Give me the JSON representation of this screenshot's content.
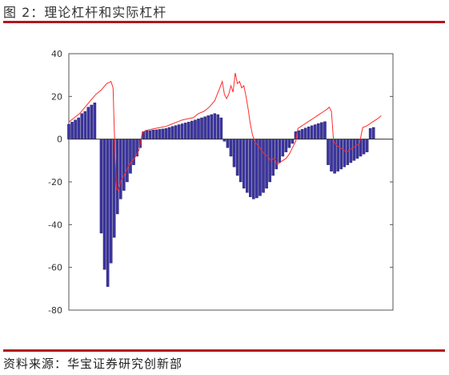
{
  "figure_title": "图 2：理论杠杆和实际杠杆",
  "source_note": "资料来源：华宝证券研究创新部",
  "colors": {
    "accent_rule": "#b1171e",
    "bar_fill": "#3c35a0",
    "bar_edge": "#1a1660",
    "line": "#ff2a2a"
  },
  "chart_data": {
    "type": "bar",
    "title": "",
    "xlabel": "",
    "ylabel": "",
    "ylim": [
      -80,
      40
    ],
    "yticks": [
      40,
      20,
      0,
      -20,
      -40,
      -60,
      -80
    ],
    "ytick_labels": [
      "40",
      "20",
      "0",
      "-20",
      "-40",
      "-60",
      "-80"
    ],
    "grid": false,
    "legend": "none",
    "x": [
      0,
      1,
      2,
      3,
      4,
      5,
      6,
      7,
      8,
      9,
      10,
      11,
      12,
      13,
      14,
      15,
      16,
      17,
      18,
      19,
      20,
      21,
      22,
      23,
      24,
      25,
      26,
      27,
      28,
      29,
      30,
      31,
      32,
      33,
      34,
      35,
      36,
      37,
      38,
      39,
      40,
      41,
      42,
      43,
      44,
      45,
      46,
      47,
      48,
      49,
      50,
      51,
      52,
      53,
      54,
      55,
      56,
      57,
      58,
      59,
      60,
      61,
      62,
      63,
      64,
      65,
      66,
      67,
      68,
      69,
      70,
      71,
      72,
      73,
      74,
      75,
      76,
      77,
      78,
      79,
      80,
      81,
      82,
      83,
      84,
      85,
      86,
      87,
      88,
      89,
      90,
      91,
      92,
      93,
      94,
      95,
      96,
      97,
      98,
      99,
      100,
      101,
      102,
      103,
      104,
      105,
      106,
      107,
      108,
      109,
      110,
      111,
      112,
      113,
      114,
      115,
      116,
      117,
      118,
      119,
      120,
      121,
      122,
      123,
      124,
      125,
      126,
      127,
      128,
      129,
      130,
      131,
      132,
      133,
      134,
      135,
      136,
      137,
      138,
      139,
      140,
      141,
      142,
      143,
      144,
      145,
      146,
      147,
      148,
      149,
      150,
      151,
      152,
      153,
      154,
      155,
      156,
      157,
      158,
      159,
      160,
      161,
      162,
      163,
      164,
      165,
      166,
      167,
      168,
      169,
      170,
      171,
      172,
      173,
      174,
      175,
      176,
      177,
      178,
      179,
      180,
      181,
      182,
      183,
      184,
      185,
      186,
      187,
      188,
      189,
      190,
      191,
      192,
      193,
      194,
      195,
      196,
      197,
      198,
      199,
      200,
      201,
      202,
      203,
      204,
      205,
      206,
      207,
      208,
      209,
      210,
      211,
      212,
      213,
      214,
      215,
      216,
      217,
      218,
      219,
      220,
      221,
      222,
      223,
      224,
      225,
      226,
      227,
      228,
      229,
      230,
      231,
      232,
      233,
      234,
      235,
      236,
      237,
      238,
      239,
      240,
      241,
      242,
      243,
      244,
      245,
      246,
      247,
      248,
      249,
      250,
      251,
      252,
      253,
      254,
      255,
      256,
      257,
      258,
      259,
      260,
      261,
      262,
      263,
      264,
      265,
      266,
      267,
      268,
      269,
      270,
      271,
      272,
      273,
      274,
      275,
      276,
      277,
      278,
      279,
      280,
      281,
      282,
      283,
      284,
      285,
      286,
      287,
      288,
      289,
      290,
      291,
      292,
      293,
      294,
      295,
      296,
      297,
      298,
      299,
      300,
      301,
      302,
      303,
      304,
      305,
      306,
      307,
      308,
      309,
      310,
      311,
      312,
      313,
      314,
      315,
      316,
      317,
      318,
      319,
      320,
      321,
      322,
      323,
      324,
      325,
      326,
      327,
      328,
      329,
      330,
      331,
      332,
      333,
      334,
      335,
      336,
      337,
      338,
      339,
      340,
      341,
      342,
      343,
      344,
      345,
      346,
      347,
      348,
      349,
      350,
      351,
      352,
      353,
      354,
      355,
      356,
      357,
      358,
      359,
      360,
      361,
      362,
      363,
      364,
      365,
      366,
      367,
      368,
      369,
      370,
      371,
      372,
      373,
      374,
      375,
      376,
      377,
      378,
      379,
      380,
      381,
      382,
      383,
      384,
      385,
      386,
      387,
      388,
      389,
      390,
      391,
      392,
      393,
      394,
      395,
      396,
      397,
      398,
      399,
      400,
      401,
      402,
      403,
      404,
      405,
      406,
      407,
      408,
      409,
      410,
      411,
      412,
      413,
      414,
      415,
      416,
      417,
      418,
      419,
      420,
      421,
      422,
      423,
      424,
      425,
      426,
      427,
      428,
      429,
      430,
      431,
      432,
      433,
      434,
      435,
      436,
      437,
      438,
      439,
      440,
      441,
      442,
      443,
      444,
      445,
      446,
      447,
      448,
      449,
      450,
      451,
      452,
      453,
      454,
      455,
      456,
      457,
      458,
      459,
      460,
      461,
      462,
      463,
      464,
      465,
      466,
      467,
      468,
      469,
      470,
      471,
      472,
      473,
      474,
      475,
      476,
      477,
      478,
      479,
      480,
      481,
      482,
      483,
      484,
      485,
      486,
      487,
      488,
      489,
      490,
      491,
      492,
      493,
      494,
      495,
      496,
      497,
      498,
      499,
      500,
      501,
      502,
      503,
      504,
      505,
      506,
      507,
      508,
      509,
      510,
      511,
      512,
      513,
      514,
      515,
      516,
      517,
      518,
      519,
      520,
      521,
      522,
      523,
      524,
      525,
      526,
      527,
      528,
      529,
      530,
      531,
      532,
      533,
      534,
      535,
      536,
      537,
      538,
      539,
      540,
      541,
      542,
      543,
      544,
      545,
      546,
      547,
      548,
      549,
      550,
      551,
      552,
      553,
      554,
      555,
      556,
      557,
      558,
      559,
      560,
      561,
      562,
      563,
      564,
      565,
      566,
      567,
      568,
      569,
      570,
      571,
      572,
      573,
      574,
      575,
      576,
      577,
      578,
      579,
      580,
      581,
      582,
      583,
      584,
      585,
      586,
      587,
      588,
      589,
      590,
      591,
      592,
      593,
      594,
      595,
      596,
      597,
      598,
      599,
      600
    ],
    "xlim": [
      0,
      600
    ],
    "series": [
      {
        "kind": "bar",
        "x": [
          0,
          6,
          12,
          18,
          24,
          30,
          36,
          42,
          48,
          54,
          60,
          66,
          72,
          78,
          84,
          90,
          96,
          102,
          108,
          114,
          120,
          126,
          132,
          138,
          144,
          150,
          156,
          162,
          168,
          174,
          180,
          186,
          192,
          198,
          204,
          210,
          216,
          222,
          228,
          234,
          240,
          246,
          252,
          258,
          264,
          270,
          276,
          282,
          288,
          294,
          300,
          306,
          312,
          318,
          324,
          330,
          336,
          342,
          348,
          354,
          360,
          366,
          372,
          378,
          384,
          390,
          396,
          402,
          408,
          414,
          420,
          426,
          432,
          438,
          444,
          450,
          456,
          462,
          468,
          474,
          480,
          486,
          492,
          498,
          504,
          510,
          516,
          522,
          528,
          534,
          540,
          546,
          552,
          558,
          564
        ],
        "values": [
          7,
          8,
          9,
          10,
          12,
          13,
          15,
          16,
          17,
          0,
          -44,
          -61,
          -69,
          -58,
          -46,
          -35,
          -28,
          -24,
          -20,
          -16,
          -12,
          -8,
          -4,
          3.5,
          4,
          4,
          4.3,
          4.4,
          4.6,
          4.8,
          5,
          5.5,
          6,
          6.4,
          6.8,
          7.2,
          7.6,
          8,
          8.5,
          9,
          9.5,
          10,
          10.5,
          11,
          11.5,
          12,
          11.5,
          10,
          -1,
          -4,
          -8,
          -13,
          -17,
          -20,
          -23,
          -25,
          -27,
          -28,
          -27.5,
          -26.5,
          -25,
          -23,
          -20,
          -17,
          -14,
          -11,
          -8,
          -6,
          -4,
          -2,
          3.5,
          4,
          4.6,
          5.2,
          5.8,
          6.3,
          6.8,
          7.3,
          7.8,
          8.2,
          -12,
          -15,
          -16,
          -15,
          -14,
          -13,
          -12,
          -11,
          -10,
          -9,
          -8,
          -7,
          -6,
          5,
          5.5
        ]
      },
      {
        "kind": "line",
        "points": [
          [
            0,
            8
          ],
          [
            10,
            10
          ],
          [
            20,
            12
          ],
          [
            30,
            15
          ],
          [
            40,
            18
          ],
          [
            50,
            21
          ],
          [
            60,
            23
          ],
          [
            70,
            26
          ],
          [
            78,
            27
          ],
          [
            82,
            24
          ],
          [
            84,
            5
          ],
          [
            88,
            -23
          ],
          [
            92,
            -24
          ],
          [
            96,
            -20
          ],
          [
            100,
            -18
          ],
          [
            106,
            -15
          ],
          [
            112,
            -12
          ],
          [
            118,
            -10
          ],
          [
            124,
            -8
          ],
          [
            130,
            -5
          ],
          [
            136,
            3
          ],
          [
            142,
            4
          ],
          [
            150,
            4.5
          ],
          [
            160,
            5
          ],
          [
            170,
            5.5
          ],
          [
            180,
            6
          ],
          [
            190,
            7
          ],
          [
            200,
            8
          ],
          [
            210,
            9
          ],
          [
            220,
            9.5
          ],
          [
            230,
            10
          ],
          [
            240,
            12
          ],
          [
            250,
            13
          ],
          [
            260,
            15
          ],
          [
            270,
            18
          ],
          [
            278,
            23
          ],
          [
            284,
            27
          ],
          [
            288,
            21
          ],
          [
            292,
            19
          ],
          [
            296,
            21
          ],
          [
            300,
            25
          ],
          [
            304,
            22
          ],
          [
            308,
            31
          ],
          [
            312,
            26
          ],
          [
            316,
            27
          ],
          [
            320,
            24
          ],
          [
            324,
            25
          ],
          [
            328,
            20
          ],
          [
            332,
            14
          ],
          [
            336,
            7
          ],
          [
            340,
            2
          ],
          [
            344,
            -1
          ],
          [
            350,
            -3
          ],
          [
            356,
            -5
          ],
          [
            362,
            -7
          ],
          [
            368,
            -8
          ],
          [
            374,
            -10
          ],
          [
            380,
            -9
          ],
          [
            386,
            -12
          ],
          [
            390,
            -11
          ],
          [
            396,
            -10
          ],
          [
            402,
            -9
          ],
          [
            408,
            -7
          ],
          [
            414,
            -4
          ],
          [
            420,
            -1
          ],
          [
            424,
            5
          ],
          [
            430,
            6
          ],
          [
            436,
            7
          ],
          [
            442,
            8
          ],
          [
            448,
            9
          ],
          [
            454,
            10
          ],
          [
            460,
            11
          ],
          [
            466,
            12
          ],
          [
            472,
            13
          ],
          [
            478,
            14
          ],
          [
            482,
            15
          ],
          [
            486,
            13
          ],
          [
            490,
            -1
          ],
          [
            496,
            -3
          ],
          [
            502,
            -4
          ],
          [
            508,
            -5
          ],
          [
            514,
            -6
          ],
          [
            520,
            -5
          ],
          [
            526,
            -4
          ],
          [
            532,
            -3
          ],
          [
            538,
            -2
          ],
          [
            544,
            5.5
          ],
          [
            550,
            6
          ],
          [
            556,
            7
          ],
          [
            562,
            8
          ],
          [
            568,
            9
          ],
          [
            574,
            10
          ],
          [
            578,
            11
          ]
        ]
      }
    ]
  }
}
